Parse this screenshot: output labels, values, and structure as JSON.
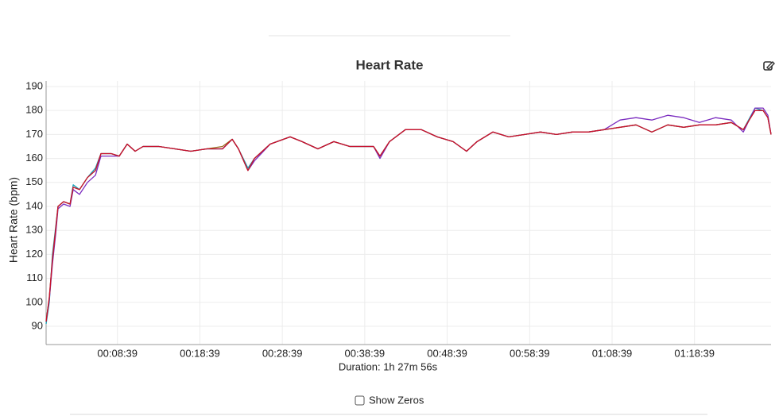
{
  "chart_data": {
    "type": "line",
    "title": "Heart Rate",
    "y_label": "Heart Rate (bpm)",
    "x_label": "Duration: 1h 27m 56s",
    "x": [
      0,
      23,
      46,
      69,
      87,
      127,
      174,
      197,
      243,
      301,
      359,
      399,
      474,
      532,
      590,
      648,
      706,
      821,
      937,
      1053,
      1169,
      1284,
      1354,
      1400,
      1469,
      1516,
      1631,
      1776,
      1863,
      1978,
      2094,
      2210,
      2383,
      2430,
      2499,
      2615,
      2731,
      2846,
      2962,
      3060,
      3136,
      3251,
      3367,
      3483,
      3598,
      3714,
      3830,
      3945,
      4061,
      4177,
      4293,
      4408,
      4524,
      4640,
      4755,
      4871,
      4987,
      5074,
      5160,
      5218,
      5253,
      5276
    ],
    "series": [
      {
        "color": "#17a2b8",
        "values": [
          91,
          100,
          120,
          131,
          140,
          142,
          141,
          149,
          147,
          152,
          156,
          162,
          162,
          161,
          166,
          163,
          165,
          165,
          164,
          163,
          164,
          164,
          168,
          164,
          156,
          160,
          166,
          169,
          167,
          164,
          167,
          165,
          165,
          161,
          167,
          172,
          172,
          169,
          167,
          163,
          167,
          171,
          169,
          170,
          171,
          170,
          171,
          171,
          172,
          173,
          174,
          171,
          174,
          173,
          174,
          174,
          175,
          172,
          181,
          180,
          177,
          170
        ]
      },
      {
        "color": "#7b2cbf",
        "values": [
          92,
          101,
          116,
          128,
          139,
          141,
          140,
          147,
          145,
          150,
          153,
          161,
          161,
          161,
          166,
          163,
          165,
          165,
          164,
          163,
          164,
          164,
          168,
          164,
          155,
          159,
          166,
          169,
          167,
          164,
          167,
          165,
          165,
          160,
          167,
          172,
          172,
          169,
          167,
          163,
          167,
          171,
          169,
          170,
          171,
          170,
          171,
          171,
          172,
          176,
          177,
          176,
          178,
          177,
          175,
          177,
          176,
          171,
          181,
          181,
          178,
          170
        ]
      },
      {
        "color": "#9c6b1e",
        "values": [
          92,
          102,
          118,
          130,
          140,
          142,
          141,
          148,
          147,
          152,
          155,
          162,
          162,
          161,
          166,
          163,
          165,
          165,
          164,
          163,
          164,
          165,
          168,
          164,
          155,
          160,
          166,
          169,
          167,
          164,
          167,
          165,
          165,
          161,
          167,
          172,
          172,
          169,
          167,
          163,
          167,
          171,
          169,
          170,
          171,
          170,
          171,
          171,
          172,
          173,
          174,
          171,
          174,
          173,
          174,
          174,
          175,
          172,
          180,
          180,
          177,
          170
        ]
      },
      {
        "color": "#c8102e",
        "values": [
          92,
          102,
          118,
          130,
          140,
          142,
          141,
          148,
          147,
          152,
          155,
          162,
          162,
          161,
          166,
          163,
          165,
          165,
          164,
          163,
          164,
          164,
          168,
          164,
          155,
          160,
          166,
          169,
          167,
          164,
          167,
          165,
          165,
          161,
          167,
          172,
          172,
          169,
          167,
          163,
          167,
          171,
          169,
          170,
          171,
          170,
          171,
          171,
          172,
          173,
          174,
          171,
          174,
          173,
          174,
          174,
          175,
          172,
          180,
          180,
          177,
          170
        ]
      }
    ],
    "xlim": [
      0,
      5276
    ],
    "xticks": [
      {
        "value": 519,
        "label": "00:08:39"
      },
      {
        "value": 1119,
        "label": "00:18:39"
      },
      {
        "value": 1719,
        "label": "00:28:39"
      },
      {
        "value": 2319,
        "label": "00:38:39"
      },
      {
        "value": 2919,
        "label": "00:48:39"
      },
      {
        "value": 3519,
        "label": "00:58:39"
      },
      {
        "value": 4119,
        "label": "01:08:39"
      },
      {
        "value": 4719,
        "label": "01:18:39"
      }
    ],
    "ylim": [
      82.4,
      192.3
    ],
    "yticks": [
      90,
      100,
      110,
      120,
      130,
      140,
      150,
      160,
      170,
      180,
      190
    ],
    "grid": true
  },
  "controls": {
    "show_zeros": "Show Zeros"
  }
}
